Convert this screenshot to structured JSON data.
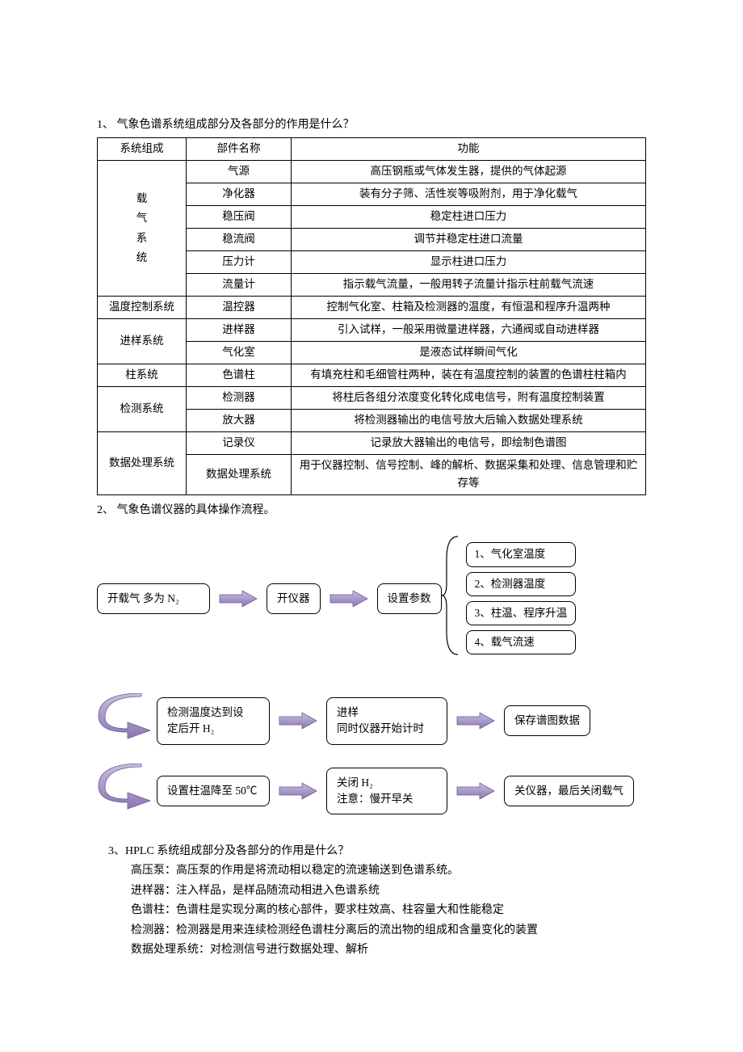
{
  "q1": {
    "title": "1、 气象色谱系统组成部分及各部分的作用是什么？",
    "headers": {
      "sys": "系统组成",
      "part": "部件名称",
      "func": "功能"
    },
    "groups": [
      {
        "system": "载气系统",
        "system_vertical": [
          "载",
          "气",
          "系",
          "统"
        ],
        "rows": [
          {
            "part": "气源",
            "func": "高压钢瓶或气体发生器，提供的气体起源"
          },
          {
            "part": "净化器",
            "func": "装有分子筛、活性炭等吸附剂，用于净化载气"
          },
          {
            "part": "稳压阀",
            "func": "稳定柱进口压力"
          },
          {
            "part": "稳流阀",
            "func": "调节并稳定柱进口流量"
          },
          {
            "part": "压力计",
            "func": "显示柱进口压力"
          },
          {
            "part": "流量计",
            "func": "指示载气流量，一般用转子流量计指示柱前载气流速"
          }
        ]
      },
      {
        "system": "温度控制系统",
        "rows": [
          {
            "part": "温控器",
            "func": "控制气化室、柱箱及检测器的温度，有恒温和程序升温两种"
          }
        ]
      },
      {
        "system": "进样系统",
        "rows": [
          {
            "part": "进样器",
            "func": "引入试样，一般采用微量进样器，六通阀或自动进样器"
          },
          {
            "part": "气化室",
            "func": "是液态试样瞬间气化"
          }
        ]
      },
      {
        "system": "柱系统",
        "rows": [
          {
            "part": "色谱柱",
            "func": "有填充柱和毛细管柱两种，装在有温度控制的装置的色谱柱柱箱内"
          }
        ]
      },
      {
        "system": "检测系统",
        "rows": [
          {
            "part": "检测器",
            "func": "将柱后各组分浓度变化转化成电信号，附有温度控制装置"
          },
          {
            "part": "放大器",
            "func": "将检测器输出的电信号放大后输入数据处理系统"
          }
        ]
      },
      {
        "system": "数据处理系统",
        "rows": [
          {
            "part": "记录仪",
            "func": "记录放大器输出的电信号，即绘制色谱图"
          },
          {
            "part": "数据处理系统",
            "func": "用于仪器控制、信号控制、峰的解析、数据采集和处理、信息管理和贮存等"
          }
        ]
      }
    ]
  },
  "q2": {
    "title": "2、 气象色谱仪器的具体操作流程。",
    "r1": {
      "b1": "开载气   多为 N₂",
      "b2": "开仪器",
      "b3": "设置参数",
      "params": [
        "1、气化室温度",
        "2、检测器温度",
        "3、柱温、程序升温",
        "4、载气流速"
      ]
    },
    "r2": {
      "b1_l1": "检测温度达到设",
      "b1_l2": "定后开 H₂",
      "b2_l1": "进样",
      "b2_l2": "同时仪器开始计时",
      "b3": "保存谱图数据"
    },
    "r3": {
      "b1": "设置柱温降至 50℃",
      "b2_l1": "关闭 H₂",
      "b2_l2": "注意：慢开早关",
      "b3": "关仪器，最后关闭载气"
    },
    "arrow_fill": "#8b77b5",
    "arrow_stroke": "#6b5a94"
  },
  "q3": {
    "title": "3、HPLC 系统组成部分及各部分的作用是什么？",
    "lines": [
      "高压泵：高压泵的作用是将流动相以稳定的流速输送到色谱系统。",
      "进样器：注入样品，是样品随流动相进入色谱系统",
      "色谱柱：色谱柱是实现分离的核心部件，要求柱效高、柱容量大和性能稳定",
      "检测器：检测器是用来连续检测经色谱柱分离后的流出物的组成和含量变化的装置",
      "数据处理系统：对检测信号进行数据处理、解析"
    ]
  }
}
